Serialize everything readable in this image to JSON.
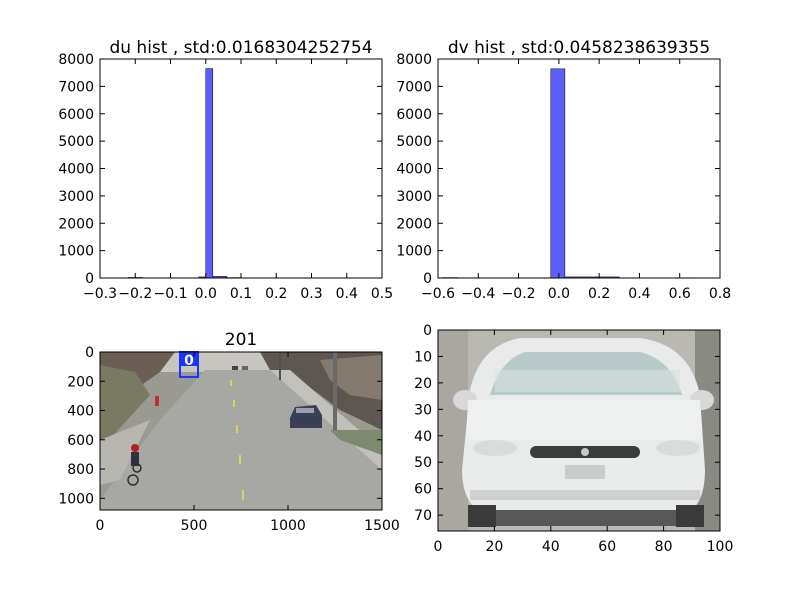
{
  "chart_data": [
    {
      "type": "bar",
      "title": "du hist , std:0.0168304252754",
      "xlabel": "",
      "ylabel": "",
      "xlim": [
        -0.3,
        0.5
      ],
      "ylim": [
        0,
        8000
      ],
      "xticks": [
        "−0.3",
        "−0.2",
        "−0.1",
        "0.0",
        "0.1",
        "0.2",
        "0.3",
        "0.4",
        "0.5"
      ],
      "yticks": [
        "0",
        "1000",
        "2000",
        "3000",
        "4000",
        "5000",
        "6000",
        "7000",
        "8000"
      ],
      "bins": [
        {
          "x0": -0.22,
          "x1": -0.18,
          "count": 20
        },
        {
          "x0": -0.02,
          "x1": 0.0,
          "count": 40
        },
        {
          "x0": 0.0,
          "x1": 0.02,
          "count": 7650
        },
        {
          "x0": 0.02,
          "x1": 0.06,
          "count": 60
        },
        {
          "x0": 0.06,
          "x1": 0.1,
          "count": 15
        }
      ],
      "bar_color": "#5555ff"
    },
    {
      "type": "bar",
      "title": "dv hist , std:0.0458238639355",
      "xlabel": "",
      "ylabel": "",
      "xlim": [
        -0.6,
        0.8
      ],
      "ylim": [
        0,
        8000
      ],
      "xticks": [
        "−0.6",
        "−0.4",
        "−0.2",
        "0.0",
        "0.2",
        "0.4",
        "0.6",
        "0.8"
      ],
      "yticks": [
        "0",
        "1000",
        "2000",
        "3000",
        "4000",
        "5000",
        "6000",
        "7000",
        "8000"
      ],
      "bins": [
        {
          "x0": -0.58,
          "x1": -0.5,
          "count": 15
        },
        {
          "x0": -0.04,
          "x1": 0.03,
          "count": 7640
        },
        {
          "x0": 0.03,
          "x1": 0.3,
          "count": 40
        },
        {
          "x0": 0.6,
          "x1": 0.68,
          "count": 10
        }
      ],
      "bar_color": "#5555ff"
    },
    {
      "type": "image",
      "title": "201",
      "xlim": [
        0,
        1920
      ],
      "ylim": [
        1080,
        0
      ],
      "xticks": [
        "0",
        "500",
        "1000",
        "1500"
      ],
      "yticks": [
        "0",
        "200",
        "400",
        "600",
        "800",
        "1000"
      ],
      "box_label": "0"
    },
    {
      "type": "image",
      "title": "",
      "xlim": [
        0,
        104
      ],
      "ylim": [
        76,
        0
      ],
      "xticks": [
        "0",
        "20",
        "40",
        "60",
        "80",
        "100"
      ],
      "yticks": [
        "0",
        "10",
        "20",
        "30",
        "40",
        "50",
        "60",
        "70"
      ]
    }
  ]
}
